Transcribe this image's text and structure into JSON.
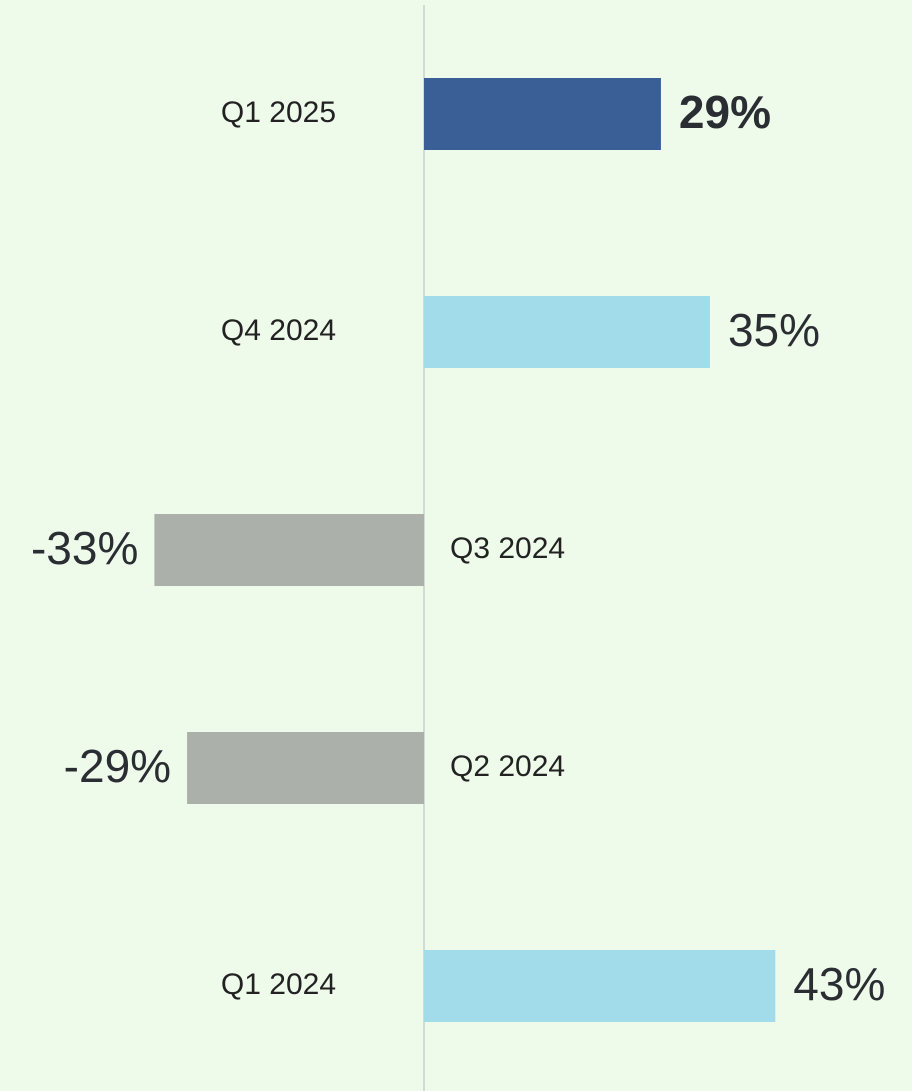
{
  "chart_data": {
    "type": "bar",
    "orientation": "horizontal",
    "categories": [
      "Q1 2025",
      "Q4 2024",
      "Q3 2024",
      "Q2 2024",
      "Q1 2024"
    ],
    "values": [
      29,
      35,
      -33,
      -29,
      43
    ],
    "value_labels": [
      "29%",
      "35%",
      "-33%",
      "-29%",
      "43%"
    ],
    "colors": [
      "#3a5f96",
      "#a2dcea",
      "#abb1aa",
      "#abb1aa",
      "#a2dcea"
    ],
    "highlight_index": 0
  }
}
